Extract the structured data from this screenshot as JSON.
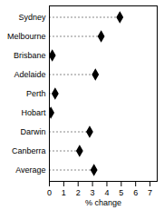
{
  "chart_data": {
    "type": "dot",
    "orientation": "horizontal",
    "categories": [
      "Sydney",
      "Melbourne",
      "Brisbane",
      "Adelaide",
      "Perth",
      "Hobart",
      "Darwin",
      "Canberra",
      "Average"
    ],
    "values": [
      4.9,
      3.6,
      0.2,
      3.2,
      0.4,
      0.1,
      2.8,
      2.1,
      3.1
    ],
    "color": "#000000",
    "marker": "diamond",
    "line_style": "dashed",
    "x_label": "% change",
    "xlim": [
      0,
      7.5
    ],
    "xticks": [
      0,
      1,
      2,
      3,
      4,
      5,
      6,
      7
    ],
    "grid": false
  }
}
